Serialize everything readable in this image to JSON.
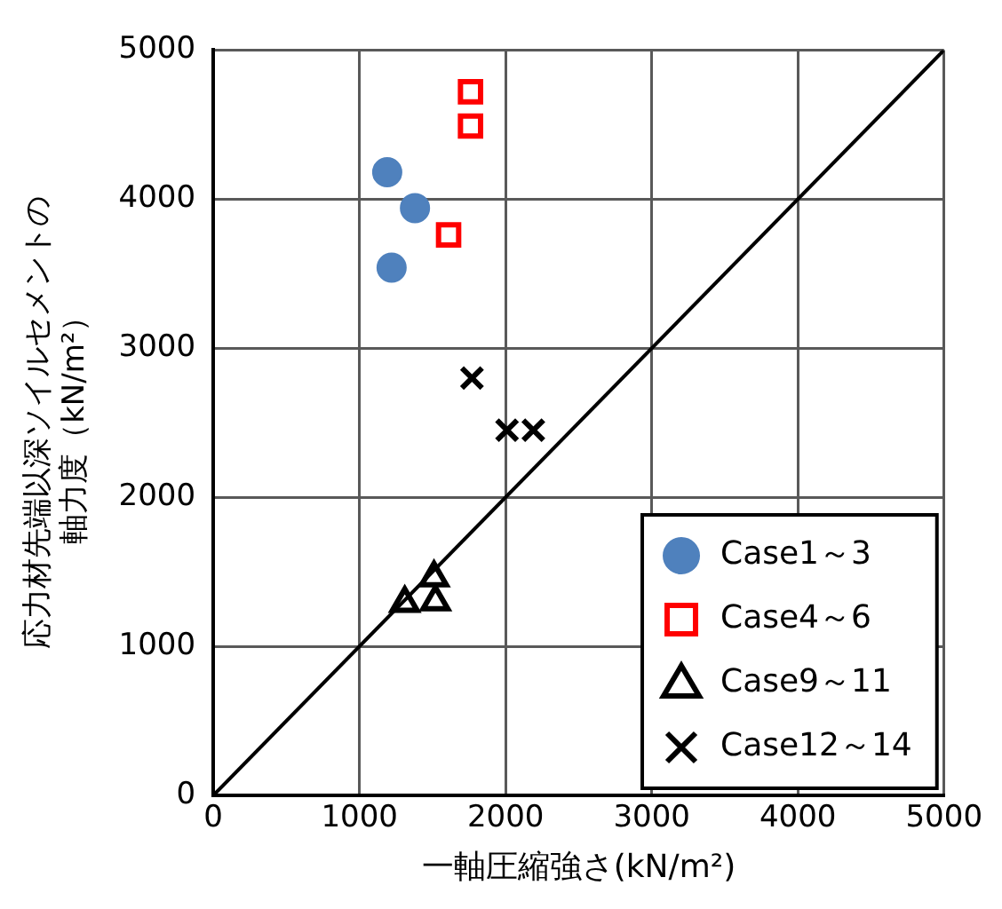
{
  "chart_data": {
    "type": "scatter",
    "xlabel": "一軸圧縮強さ(kN/m²)",
    "ylabel": "応力材先端以深ソイルセメントの軸力度（kN/m²）",
    "xlim": [
      0,
      5000
    ],
    "ylim": [
      0,
      5000
    ],
    "xticks": [
      0,
      1000,
      2000,
      3000,
      4000,
      5000
    ],
    "yticks": [
      0,
      1000,
      2000,
      3000,
      4000,
      5000
    ],
    "grid": true,
    "legend": "bottom right",
    "series": [
      {
        "name": "Case1～3",
        "color": "#4f81bd",
        "marker": "circle",
        "x": [
          1190,
          1380,
          1220
        ],
        "values": [
          4180,
          3940,
          3540
        ]
      },
      {
        "name": "Case4～6",
        "color": "#ff0000",
        "marker": "square",
        "x": [
          1760,
          1760,
          1610
        ],
        "values": [
          4720,
          4490,
          3760
        ]
      },
      {
        "name": "Case9～11",
        "color": "#000000",
        "marker": "triangle",
        "x": [
          1510,
          1310,
          1520
        ],
        "values": [
          1460,
          1290,
          1300
        ]
      },
      {
        "name": "Case12～14",
        "color": "#000000",
        "marker": "cross",
        "x": [
          1770,
          2010,
          2190
        ],
        "values": [
          2800,
          2450,
          2450
        ]
      },
      {
        "type": "line",
        "color": "#000000",
        "marker": "none",
        "x": [
          0,
          5000
        ],
        "values": [
          0,
          5000
        ]
      }
    ]
  }
}
